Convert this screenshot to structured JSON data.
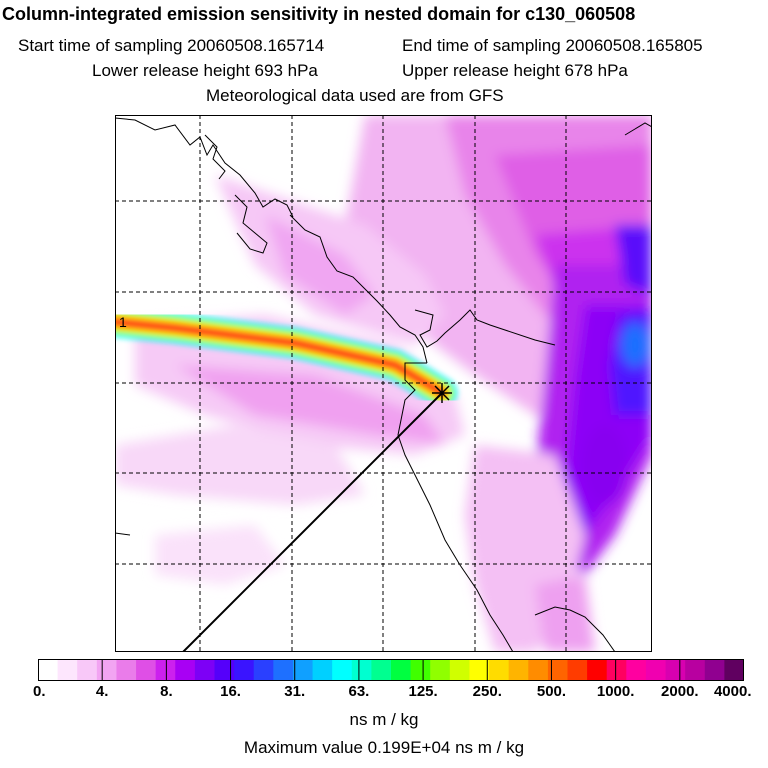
{
  "header": {
    "title": "Column-integrated emission sensitivity in nested domain for c130_060508",
    "start_label": "Start time of sampling 20060508.165714",
    "end_label": "End time of sampling 20060508.165805",
    "lower_label": "Lower release height  693 hPa",
    "upper_label": "Upper release height  678 hPa",
    "met_label": "Meteorological data used are from GFS"
  },
  "map": {
    "marker_label": "1"
  },
  "colorbar": {
    "ticks": [
      "0.",
      "4.",
      "8.",
      "16.",
      "31.",
      "63.",
      "125.",
      "250.",
      "500.",
      "1000.",
      "2000.",
      "4000."
    ],
    "colors": [
      "#ffffff",
      "#fde6fd",
      "#f8c8f8",
      "#f2a4f2",
      "#ea7cea",
      "#df4fe6",
      "#cc20ee",
      "#a800f4",
      "#7d00f6",
      "#5500fa",
      "#3a14ff",
      "#2a40ff",
      "#1e70ff",
      "#10a0ff",
      "#00d0ff",
      "#00ffff",
      "#00ffd0",
      "#00ff90",
      "#00ff40",
      "#40ff00",
      "#90ff00",
      "#d0ff00",
      "#ffff00",
      "#ffdc00",
      "#ffb400",
      "#ff8c00",
      "#ff6400",
      "#ff3c00",
      "#ff0000",
      "#ff0060",
      "#ff00a0",
      "#f000b0",
      "#d800b0",
      "#b800a0",
      "#900090",
      "#600060"
    ],
    "unit": "ns m / kg",
    "max_label": "Maximum value  0.199E+04 ns m / kg"
  }
}
